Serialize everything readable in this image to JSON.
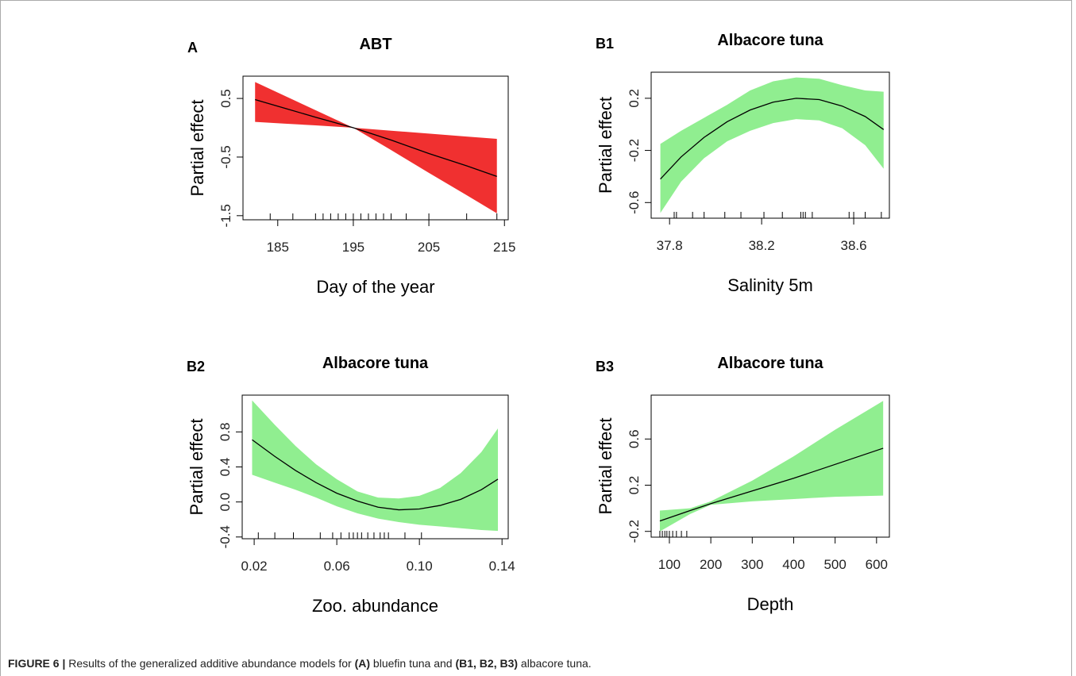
{
  "chart_data": [
    {
      "type": "line",
      "panel": "A",
      "title": "ABT",
      "x_label": "Day of the year",
      "y_label": "Partial effect",
      "color": "#f03030",
      "x": [
        182,
        186,
        190,
        195,
        200,
        205,
        210,
        214
      ],
      "values": [
        0.48,
        0.33,
        0.18,
        0.0,
        -0.21,
        -0.44,
        -0.65,
        -0.83
      ],
      "upper": [
        0.78,
        0.54,
        0.3,
        0.0,
        -0.05,
        -0.1,
        -0.15,
        -0.19
      ],
      "lower": [
        0.1,
        0.07,
        0.04,
        0.0,
        -0.38,
        -0.77,
        -1.15,
        -1.46
      ],
      "rug": [
        184,
        187,
        190,
        191,
        192,
        193,
        194,
        195,
        196,
        197,
        198,
        199,
        200,
        202,
        205,
        210,
        214
      ],
      "xlim": [
        180.4,
        215.5
      ],
      "ylim": [
        -1.57,
        0.88
      ],
      "xticks": [
        185,
        195,
        205,
        215
      ],
      "yticks": [
        -1.5,
        -0.5,
        0.5
      ]
    },
    {
      "type": "line",
      "panel": "B1",
      "title": "Albacore tuna",
      "x_label": "Salinity 5m",
      "y_label": "Partial effect",
      "color": "#90ee90",
      "x": [
        37.76,
        37.85,
        37.95,
        38.05,
        38.15,
        38.25,
        38.35,
        38.45,
        38.55,
        38.65,
        38.73
      ],
      "values": [
        -0.42,
        -0.25,
        -0.1,
        0.02,
        0.11,
        0.17,
        0.2,
        0.19,
        0.14,
        0.06,
        -0.04
      ],
      "upper": [
        -0.15,
        -0.05,
        0.05,
        0.15,
        0.26,
        0.33,
        0.36,
        0.35,
        0.3,
        0.26,
        0.25
      ],
      "lower": [
        -0.68,
        -0.44,
        -0.26,
        -0.13,
        -0.05,
        0.01,
        0.04,
        0.03,
        -0.03,
        -0.16,
        -0.34
      ],
      "rug": [
        37.82,
        37.83,
        37.9,
        37.95,
        38.04,
        38.11,
        38.21,
        38.29,
        38.37,
        38.38,
        38.39,
        38.42,
        38.58,
        38.6,
        38.65,
        38.72
      ],
      "xlim": [
        37.72,
        38.755
      ],
      "ylim": [
        -0.72,
        0.4
      ],
      "xticks": [
        37.8,
        38.2,
        38.6
      ],
      "yticks": [
        -0.6,
        -0.2,
        0.2
      ]
    },
    {
      "type": "line",
      "panel": "B2",
      "title": "Albacore tuna",
      "x_label": "Zoo. abundance",
      "y_label": "Partial effect",
      "color": "#90ee90",
      "x": [
        0.019,
        0.03,
        0.04,
        0.05,
        0.06,
        0.07,
        0.08,
        0.09,
        0.1,
        0.11,
        0.12,
        0.13,
        0.138
      ],
      "values": [
        0.71,
        0.52,
        0.36,
        0.22,
        0.1,
        0.01,
        -0.06,
        -0.09,
        -0.08,
        -0.04,
        0.03,
        0.14,
        0.26
      ],
      "upper": [
        1.16,
        0.88,
        0.64,
        0.43,
        0.26,
        0.12,
        0.05,
        0.04,
        0.07,
        0.16,
        0.33,
        0.57,
        0.84
      ],
      "lower": [
        0.31,
        0.22,
        0.14,
        0.05,
        -0.05,
        -0.13,
        -0.19,
        -0.23,
        -0.26,
        -0.28,
        -0.3,
        -0.32,
        -0.33
      ],
      "rug": [
        0.022,
        0.03,
        0.039,
        0.052,
        0.058,
        0.062,
        0.066,
        0.068,
        0.07,
        0.072,
        0.075,
        0.078,
        0.081,
        0.083,
        0.085,
        0.093,
        0.101
      ],
      "xlim": [
        0.0142,
        0.143
      ],
      "ylim": [
        -0.42,
        1.22
      ],
      "xticks": [
        0.02,
        0.06,
        {
          "value": 0.1,
          "label": "0.10"
        },
        0.14
      ],
      "yticks": [
        -0.4,
        {
          "value": 0,
          "label": "0.0"
        },
        0.4,
        0.8
      ]
    },
    {
      "type": "line",
      "panel": "B3",
      "title": "Albacore tuna",
      "x_label": "Depth",
      "y_label": "Partial effect",
      "color": "#90ee90",
      "x": [
        77,
        150,
        200,
        300,
        400,
        500,
        616
      ],
      "values": [
        -0.11,
        -0.02,
        0.04,
        0.15,
        0.26,
        0.38,
        0.52
      ],
      "upper": [
        -0.02,
        0.0,
        0.06,
        0.24,
        0.45,
        0.68,
        0.93
      ],
      "lower": [
        -0.2,
        -0.05,
        0.03,
        0.06,
        0.08,
        0.1,
        0.11
      ],
      "rug": [
        77,
        83,
        89,
        94,
        100,
        108,
        117,
        129,
        142
      ],
      "xlim": [
        56,
        631
      ],
      "ylim": [
        -0.25,
        0.98
      ],
      "xticks": [
        100,
        200,
        300,
        400,
        500,
        600
      ],
      "yticks": [
        -0.2,
        0.2,
        0.6
      ]
    }
  ],
  "caption": {
    "label": "FIGURE 6 |",
    "segments": [
      {
        "text": " Results of the generalized additive abundance models for ",
        "bold": false
      },
      {
        "text": "(A)",
        "bold": true
      },
      {
        "text": " bluefin tuna and ",
        "bold": false
      },
      {
        "text": "(B1, B2, B3)",
        "bold": true
      },
      {
        "text": " albacore tuna.",
        "bold": false
      }
    ]
  }
}
